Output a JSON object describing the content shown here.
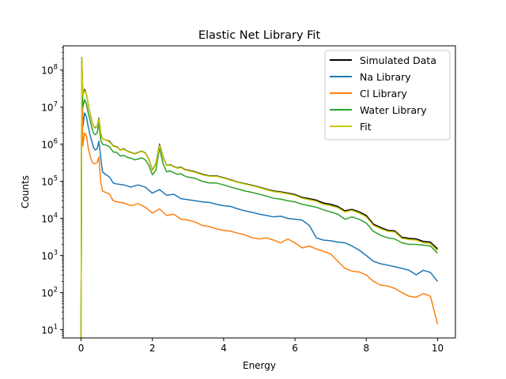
{
  "chart_data": {
    "type": "line",
    "title": "Elastic Net Library Fit",
    "xlabel": "Energy",
    "ylabel": "Counts",
    "xlim": [
      -0.5,
      10.5
    ],
    "ylim": [
      6,
      450000000
    ],
    "yscale": "log",
    "x_ticks": [
      0,
      2,
      4,
      6,
      8,
      10
    ],
    "x_tick_labels": [
      "0",
      "2",
      "4",
      "6",
      "8",
      "10"
    ],
    "y_ticks": [
      10,
      100,
      1000,
      10000,
      100000,
      1000000,
      10000000,
      100000000
    ],
    "y_tick_labels": [
      {
        "base": "10",
        "exp": "1"
      },
      {
        "base": "10",
        "exp": "2"
      },
      {
        "base": "10",
        "exp": "3"
      },
      {
        "base": "10",
        "exp": "4"
      },
      {
        "base": "10",
        "exp": "5"
      },
      {
        "base": "10",
        "exp": "6"
      },
      {
        "base": "10",
        "exp": "7"
      },
      {
        "base": "10",
        "exp": "8"
      }
    ],
    "grid": false,
    "legend_position": "top-right",
    "series": [
      {
        "name": "Simulated Data",
        "color": "#000000",
        "x": [
          0,
          0.02,
          0.05,
          0.1,
          0.15,
          0.2,
          0.25,
          0.3,
          0.35,
          0.4,
          0.45,
          0.5,
          0.55,
          0.6,
          0.7,
          0.8,
          0.9,
          1.0,
          1.1,
          1.2,
          1.3,
          1.4,
          1.5,
          1.6,
          1.7,
          1.8,
          1.9,
          2.0,
          2.1,
          2.2,
          2.3,
          2.4,
          2.5,
          2.6,
          2.7,
          2.8,
          2.9,
          3.0,
          3.2,
          3.4,
          3.6,
          3.8,
          4.0,
          4.2,
          4.4,
          4.6,
          4.8,
          5.0,
          5.2,
          5.4,
          5.6,
          5.8,
          6.0,
          6.2,
          6.4,
          6.6,
          6.8,
          7.0,
          7.2,
          7.4,
          7.6,
          7.8,
          8.0,
          8.2,
          8.4,
          8.6,
          8.8,
          9.0,
          9.2,
          9.4,
          9.6,
          9.8,
          10.0
        ],
        "y": [
          8,
          220000000,
          20000000,
          30000000,
          22000000,
          12000000,
          7000000,
          4500000,
          3000000,
          2800000,
          3000000,
          5000000,
          2000000,
          1400000,
          1300000,
          1200000,
          900000,
          850000,
          700000,
          750000,
          650000,
          600000,
          550000,
          600000,
          650000,
          580000,
          400000,
          200000,
          300000,
          1000000,
          450000,
          270000,
          280000,
          250000,
          230000,
          240000,
          210000,
          200000,
          180000,
          155000,
          140000,
          140000,
          125000,
          110000,
          95000,
          86000,
          78000,
          70000,
          61000,
          55000,
          52000,
          48000,
          44000,
          37000,
          34000,
          31000,
          26000,
          24000,
          21000,
          16000,
          17500,
          15000,
          12000,
          7000,
          5700,
          4800,
          4600,
          3100,
          2900,
          2800,
          2400,
          2300,
          1500
        ]
      },
      {
        "name": "Na Library",
        "color": "#1f77b4",
        "x": [
          0,
          0.02,
          0.05,
          0.1,
          0.15,
          0.2,
          0.25,
          0.3,
          0.35,
          0.4,
          0.45,
          0.5,
          0.55,
          0.6,
          0.7,
          0.8,
          0.9,
          1.0,
          1.2,
          1.4,
          1.6,
          1.8,
          2.0,
          2.2,
          2.4,
          2.6,
          2.8,
          3.0,
          3.2,
          3.4,
          3.6,
          3.8,
          4.0,
          4.2,
          4.4,
          4.6,
          4.8,
          5.0,
          5.2,
          5.4,
          5.6,
          5.8,
          6.0,
          6.2,
          6.4,
          6.6,
          6.8,
          7.0,
          7.2,
          7.4,
          7.6,
          7.8,
          8.0,
          8.2,
          8.4,
          8.6,
          8.8,
          9.0,
          9.2,
          9.4,
          9.6,
          9.8,
          10.0
        ],
        "y": [
          5,
          200000000,
          3000000,
          7000000,
          5500000,
          3000000,
          1800000,
          1200000,
          800000,
          700000,
          750000,
          1200000,
          450000,
          180000,
          150000,
          130000,
          90000,
          85000,
          80000,
          70000,
          80000,
          70000,
          48000,
          60000,
          42000,
          45000,
          34000,
          32000,
          30000,
          28000,
          27000,
          24000,
          22000,
          21000,
          18000,
          16000,
          14500,
          13000,
          12000,
          11000,
          11500,
          10000,
          9500,
          9000,
          6500,
          3000,
          2600,
          2500,
          2300,
          2200,
          1800,
          1400,
          1000,
          700,
          600,
          550,
          500,
          450,
          400,
          300,
          400,
          350,
          200
        ]
      },
      {
        "name": "Cl Library",
        "color": "#ff7f0e",
        "x": [
          0,
          0.02,
          0.05,
          0.1,
          0.15,
          0.2,
          0.25,
          0.3,
          0.35,
          0.4,
          0.45,
          0.5,
          0.55,
          0.6,
          0.7,
          0.8,
          0.9,
          1.0,
          1.2,
          1.4,
          1.6,
          1.8,
          2.0,
          2.2,
          2.4,
          2.6,
          2.8,
          3.0,
          3.2,
          3.4,
          3.6,
          3.8,
          4.0,
          4.2,
          4.4,
          4.6,
          4.8,
          5.0,
          5.2,
          5.4,
          5.6,
          5.8,
          6.0,
          6.2,
          6.4,
          6.6,
          6.8,
          7.0,
          7.2,
          7.4,
          7.6,
          7.8,
          8.0,
          8.2,
          8.4,
          8.6,
          8.8,
          9.0,
          9.2,
          9.4,
          9.6,
          9.8,
          10.0
        ],
        "y": [
          5,
          200000000,
          900000,
          2000000,
          1700000,
          800000,
          500000,
          350000,
          300000,
          300000,
          320000,
          450000,
          100000,
          55000,
          50000,
          45000,
          30000,
          28000,
          26000,
          22000,
          25000,
          20000,
          14000,
          18000,
          12000,
          13000,
          9500,
          9000,
          8000,
          6500,
          6000,
          5200,
          4800,
          4500,
          4000,
          3600,
          3000,
          2800,
          3000,
          2600,
          2200,
          2800,
          2200,
          1600,
          1800,
          1500,
          1300,
          1100,
          700,
          450,
          380,
          360,
          300,
          200,
          160,
          150,
          130,
          100,
          80,
          75,
          95,
          80,
          14
        ]
      },
      {
        "name": "Water Library",
        "color": "#2ca02c",
        "x": [
          0,
          0.02,
          0.05,
          0.1,
          0.15,
          0.2,
          0.25,
          0.3,
          0.35,
          0.4,
          0.45,
          0.5,
          0.55,
          0.6,
          0.7,
          0.8,
          0.9,
          1.0,
          1.1,
          1.2,
          1.3,
          1.4,
          1.5,
          1.6,
          1.7,
          1.8,
          1.9,
          2.0,
          2.1,
          2.2,
          2.3,
          2.4,
          2.5,
          2.6,
          2.7,
          2.8,
          2.9,
          3.0,
          3.2,
          3.4,
          3.6,
          3.8,
          4.0,
          4.2,
          4.4,
          4.6,
          4.8,
          5.0,
          5.2,
          5.4,
          5.6,
          5.8,
          6.0,
          6.2,
          6.4,
          6.6,
          6.8,
          7.0,
          7.2,
          7.4,
          7.6,
          7.8,
          8.0,
          8.2,
          8.4,
          8.6,
          8.8,
          9.0,
          9.2,
          9.4,
          9.6,
          9.8,
          10.0
        ],
        "y": [
          5,
          200000000,
          10000000,
          16000000,
          12000000,
          7000000,
          4500000,
          2800000,
          2000000,
          1800000,
          2000000,
          3600000,
          1300000,
          1000000,
          950000,
          850000,
          620000,
          600000,
          480000,
          500000,
          440000,
          420000,
          380000,
          400000,
          430000,
          380000,
          270000,
          150000,
          200000,
          800000,
          300000,
          180000,
          190000,
          170000,
          155000,
          160000,
          140000,
          130000,
          120000,
          100000,
          90000,
          90000,
          80000,
          70000,
          62000,
          55000,
          50000,
          45000,
          40000,
          35000,
          33000,
          30000,
          28000,
          24000,
          22000,
          20000,
          17000,
          15000,
          13000,
          9500,
          11000,
          9500,
          7500,
          4500,
          3500,
          3000,
          2800,
          2200,
          2000,
          2000,
          1900,
          1800,
          1150
        ]
      },
      {
        "name": "Fit",
        "color": "#c8c800",
        "x": [
          0,
          0.02,
          0.05,
          0.1,
          0.15,
          0.2,
          0.25,
          0.3,
          0.35,
          0.4,
          0.45,
          0.5,
          0.55,
          0.6,
          0.7,
          0.8,
          0.9,
          1.0,
          1.1,
          1.2,
          1.3,
          1.4,
          1.5,
          1.6,
          1.7,
          1.8,
          1.9,
          2.0,
          2.1,
          2.2,
          2.3,
          2.4,
          2.5,
          2.6,
          2.7,
          2.8,
          2.9,
          3.0,
          3.2,
          3.4,
          3.6,
          3.8,
          4.0,
          4.2,
          4.4,
          4.6,
          4.8,
          5.0,
          5.2,
          5.4,
          5.6,
          5.8,
          6.0,
          6.2,
          6.4,
          6.6,
          6.8,
          7.0,
          7.2,
          7.4,
          7.6,
          7.8,
          8.0,
          8.2,
          8.4,
          8.6,
          8.8,
          9.0,
          9.2,
          9.4,
          9.6,
          9.8,
          10.0
        ],
        "y": [
          6,
          220000000,
          20000000,
          28000000,
          22000000,
          12000000,
          7000000,
          4500000,
          3000000,
          2700000,
          3000000,
          4800000,
          2000000,
          1400000,
          1300000,
          1150000,
          880000,
          830000,
          690000,
          730000,
          640000,
          590000,
          540000,
          590000,
          640000,
          570000,
          390000,
          195000,
          290000,
          950000,
          440000,
          265000,
          275000,
          245000,
          225000,
          235000,
          205000,
          195000,
          175000,
          150000,
          137000,
          137000,
          122000,
          107000,
          93000,
          84000,
          76000,
          68000,
          59000,
          53000,
          50000,
          46000,
          42000,
          35000,
          32000,
          29000,
          24000,
          22000,
          19500,
          15000,
          16500,
          14000,
          11000,
          6500,
          5300,
          4500,
          4300,
          2900,
          2700,
          2600,
          2200,
          2100,
          1350
        ]
      }
    ]
  }
}
